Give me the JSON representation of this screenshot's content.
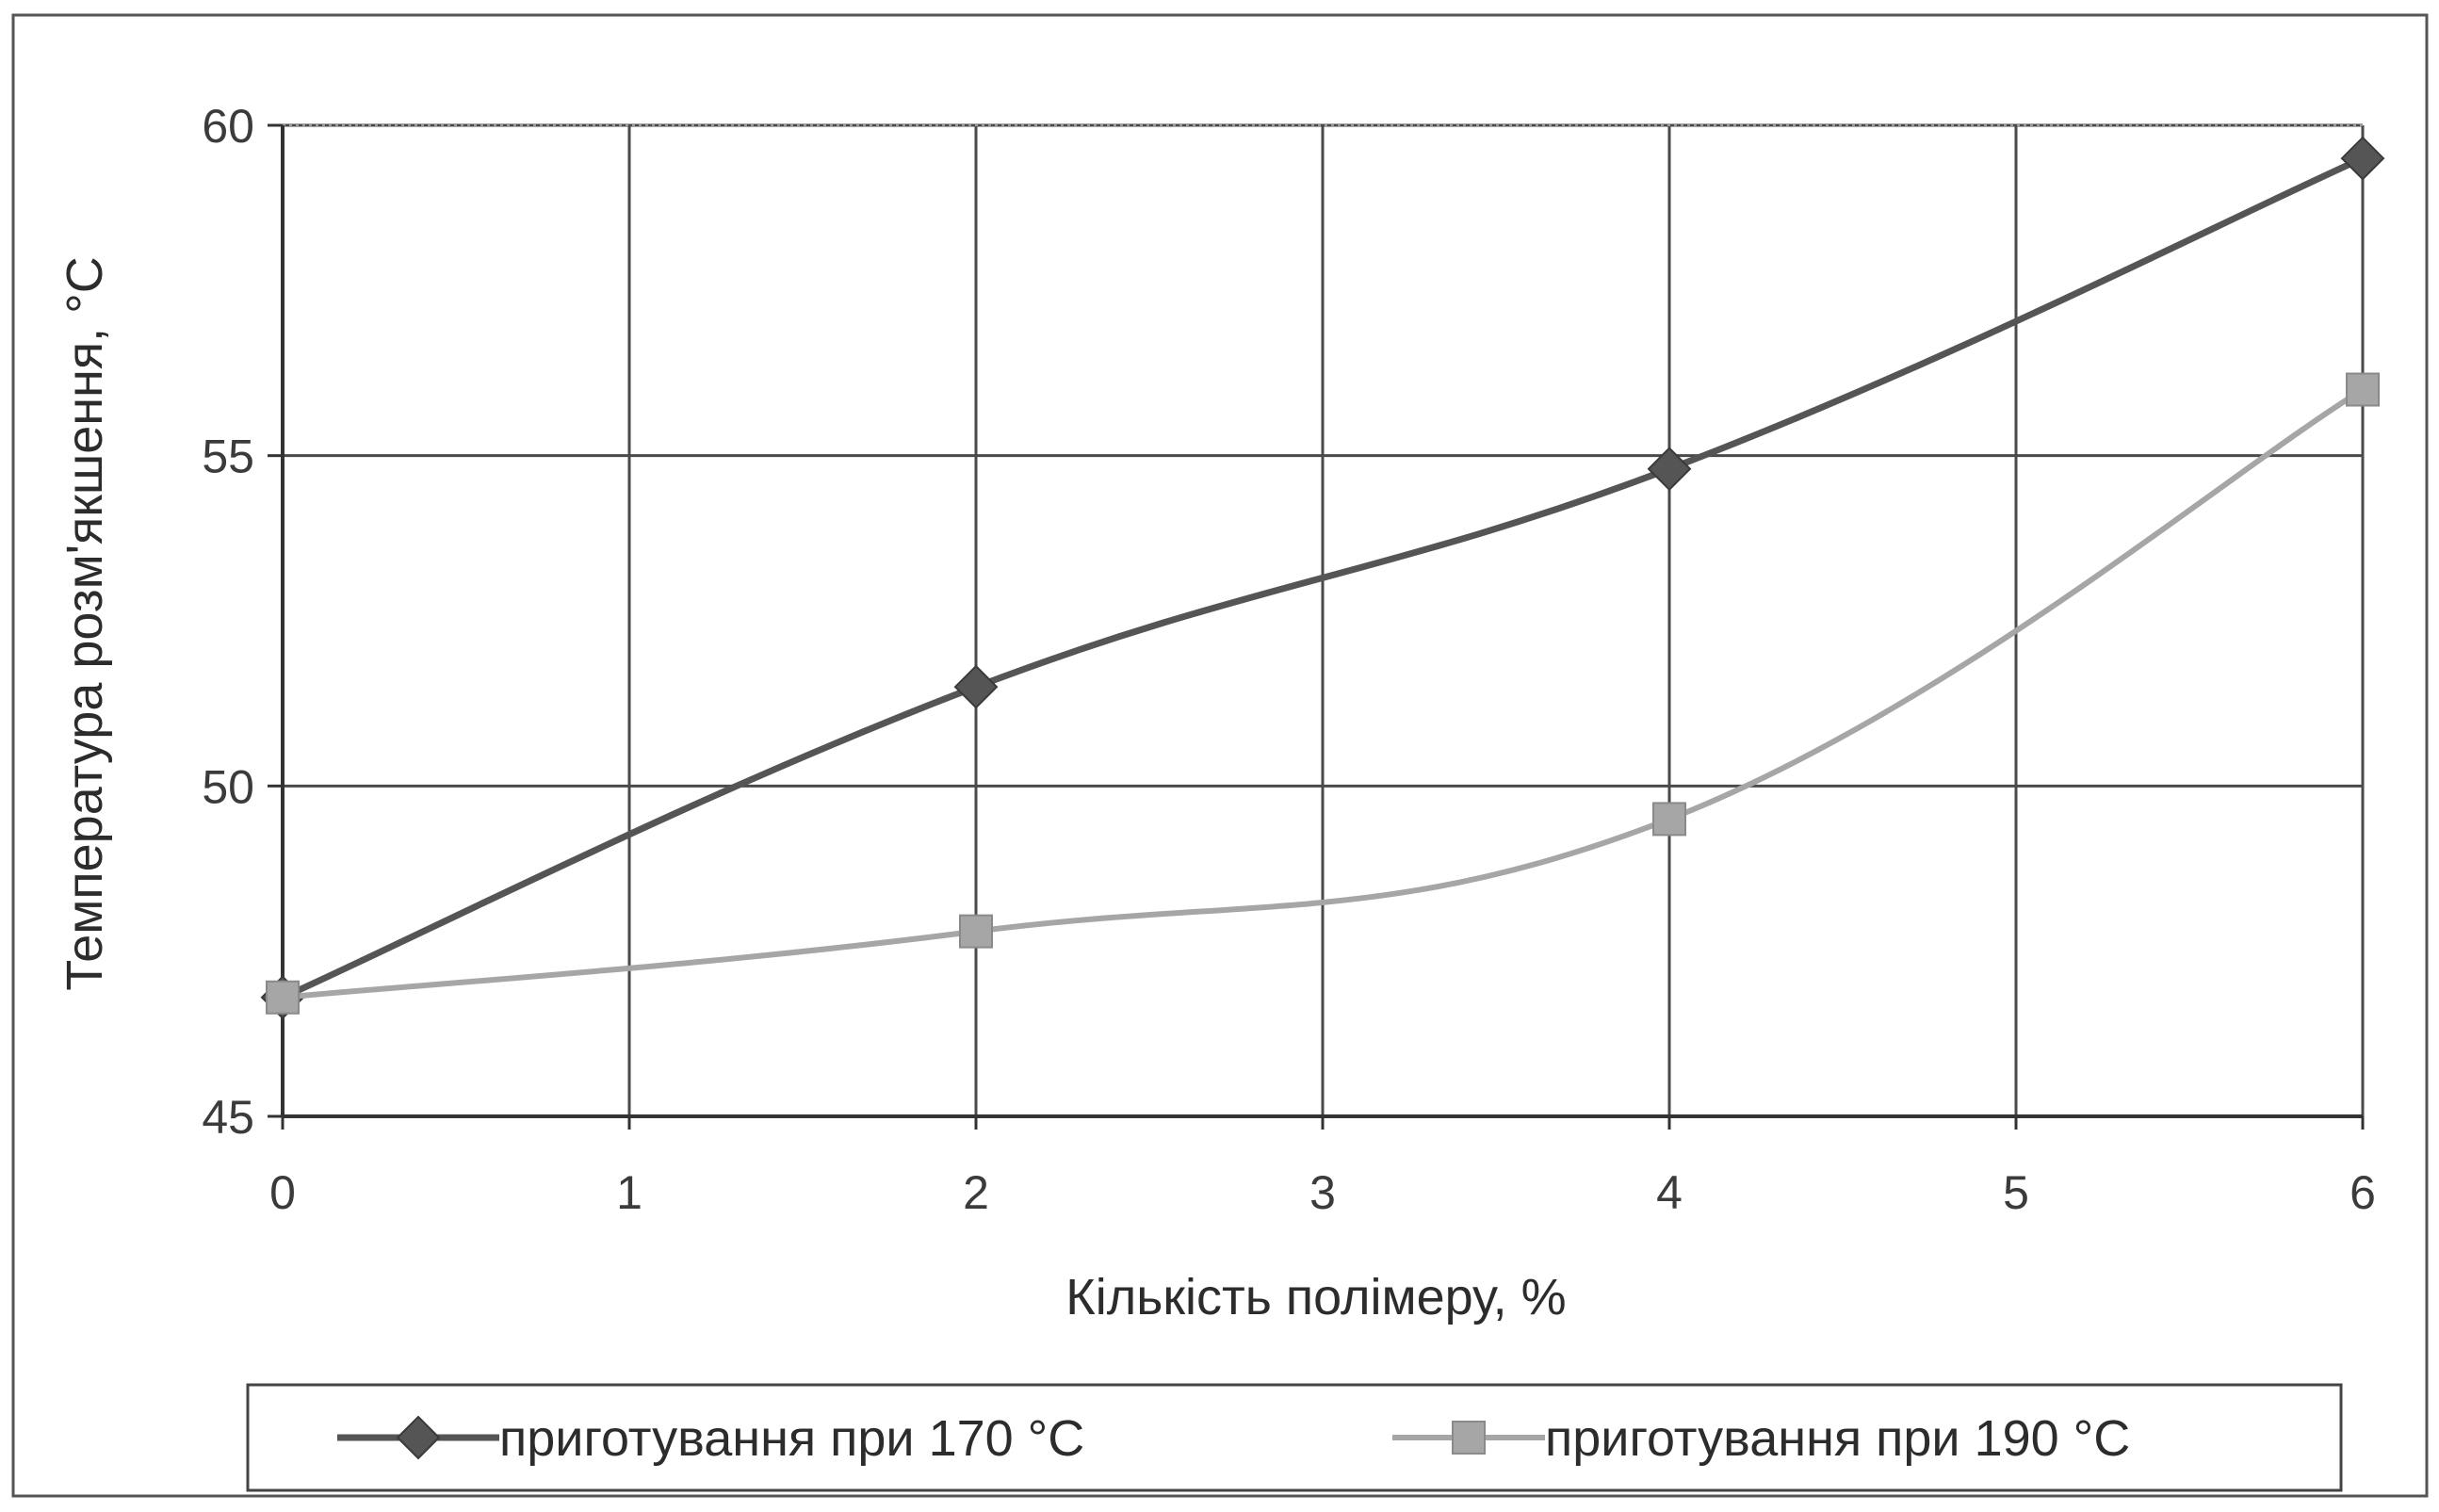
{
  "chart_data": {
    "type": "line",
    "title": "",
    "xlabel": "Кількість полімеру, %",
    "ylabel": "Температура розм'якшення, °С",
    "xlim": [
      0,
      6
    ],
    "ylim": [
      45,
      60
    ],
    "x_ticks": [
      "0",
      "1",
      "2",
      "3",
      "4",
      "5",
      "6"
    ],
    "y_ticks": [
      "45",
      "50",
      "55",
      "60"
    ],
    "grid": true,
    "legend_position": "bottom",
    "series": [
      {
        "name": "приготування при 170 °С",
        "marker": "diamond",
        "color": "#555555",
        "x": [
          0,
          2,
          4,
          6
        ],
        "y": [
          46.8,
          51.5,
          54.8,
          59.5
        ]
      },
      {
        "name": "приготування при 190 °С",
        "marker": "square",
        "color": "#a6a6a6",
        "x": [
          0,
          2,
          4,
          6
        ],
        "y": [
          46.8,
          47.8,
          49.5,
          56.0
        ]
      }
    ]
  }
}
